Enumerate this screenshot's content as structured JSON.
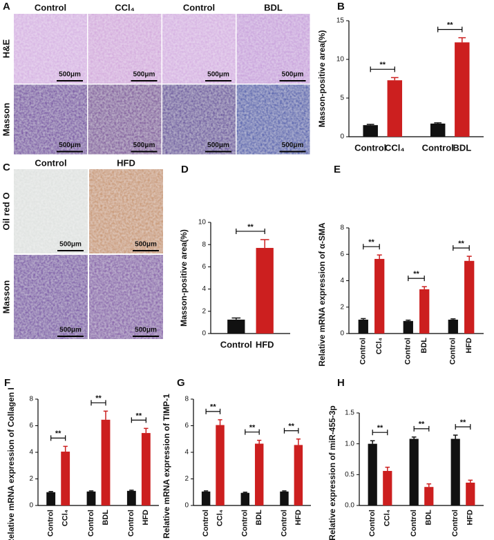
{
  "micrographs": [
    {
      "label": "A",
      "columns": [
        "Control",
        "CCl₄",
        "Control",
        "BDL"
      ],
      "rows": [
        "H&E",
        "Masson"
      ],
      "scale": "500μm"
    },
    {
      "label": "C",
      "columns": [
        "Control",
        "HFD"
      ],
      "rows": [
        "Oil red O",
        "Masson"
      ],
      "scale": "500μm"
    }
  ],
  "chart_data": [
    {
      "type": "bar",
      "label": "B",
      "ylabel": "Masson-positive area(%)",
      "categories": [
        "Control",
        "CCl₄",
        "Control",
        "BDL"
      ],
      "values": [
        1.5,
        7.3,
        1.7,
        12.2
      ],
      "errors": [
        0.1,
        0.35,
        0.1,
        0.6
      ],
      "colors": [
        "#111111",
        "#cc1f1f",
        "#111111",
        "#cc1f1f"
      ],
      "ylim": [
        0,
        15
      ],
      "yticks": [
        0,
        5,
        10,
        15
      ],
      "significance": [
        "**",
        "**"
      ]
    },
    {
      "type": "bar",
      "label": "D",
      "ylabel": "Masson-positive area(%)",
      "categories": [
        "Control",
        "HFD"
      ],
      "values": [
        1.25,
        7.7
      ],
      "errors": [
        0.15,
        0.75
      ],
      "colors": [
        "#111111",
        "#cc1f1f"
      ],
      "ylim": [
        0,
        10
      ],
      "yticks": [
        0,
        2,
        4,
        6,
        8,
        10
      ],
      "significance": [
        "**"
      ]
    },
    {
      "type": "bar",
      "label": "E",
      "ylabel": "Relative mRNA expression of α-SMA",
      "categories": [
        "Control",
        "CCl₄",
        "Control",
        "BDL",
        "Control",
        "HFD"
      ],
      "values": [
        1.05,
        5.65,
        0.95,
        3.35,
        1.05,
        5.5
      ],
      "errors": [
        0.08,
        0.3,
        0.06,
        0.2,
        0.06,
        0.35
      ],
      "colors": [
        "#111111",
        "#cc1f1f",
        "#111111",
        "#cc1f1f",
        "#111111",
        "#cc1f1f"
      ],
      "ylim": [
        0,
        8
      ],
      "yticks": [
        0,
        2,
        4,
        6,
        8
      ],
      "significance": [
        "**",
        "**",
        "**"
      ]
    },
    {
      "type": "bar",
      "label": "F",
      "ylabel": "Relative mRNA expression of Collagen I",
      "categories": [
        "Control",
        "CCl₄",
        "Control",
        "BDL",
        "Control",
        "HFD"
      ],
      "values": [
        1.0,
        4.05,
        1.05,
        6.45,
        1.1,
        5.45
      ],
      "errors": [
        0.05,
        0.4,
        0.05,
        0.65,
        0.05,
        0.35
      ],
      "colors": [
        "#111111",
        "#cc1f1f",
        "#111111",
        "#cc1f1f",
        "#111111",
        "#cc1f1f"
      ],
      "ylim": [
        0,
        8
      ],
      "yticks": [
        0,
        2,
        4,
        6,
        8
      ],
      "significance": [
        "**",
        "**",
        "**"
      ]
    },
    {
      "type": "bar",
      "label": "G",
      "ylabel": "Relative mRNA expression of TIMP-1",
      "categories": [
        "Control",
        "CCl₄",
        "Control",
        "BDL",
        "Control",
        "HFD"
      ],
      "values": [
        1.05,
        6.05,
        0.95,
        4.65,
        1.05,
        4.55
      ],
      "errors": [
        0.05,
        0.4,
        0.05,
        0.25,
        0.05,
        0.45
      ],
      "colors": [
        "#111111",
        "#cc1f1f",
        "#111111",
        "#cc1f1f",
        "#111111",
        "#cc1f1f"
      ],
      "ylim": [
        0,
        8
      ],
      "yticks": [
        0,
        2,
        4,
        6,
        8
      ],
      "significance": [
        "**",
        "**",
        "**"
      ]
    },
    {
      "type": "bar",
      "label": "H",
      "ylabel": "Relative expression of miR-455-3p",
      "categories": [
        "Control",
        "CCl₄",
        "Control",
        "BDL",
        "Control",
        "HFD"
      ],
      "values": [
        1.0,
        0.56,
        1.08,
        0.3,
        1.08,
        0.37
      ],
      "errors": [
        0.05,
        0.06,
        0.03,
        0.05,
        0.06,
        0.04
      ],
      "colors": [
        "#111111",
        "#cc1f1f",
        "#111111",
        "#cc1f1f",
        "#111111",
        "#cc1f1f"
      ],
      "ylim": [
        0,
        1.5
      ],
      "yticks": [
        {
          "value": 0,
          "label": "0.0"
        },
        {
          "value": 0.5,
          "label": "0.5"
        },
        {
          "value": 1,
          "label": "1.0"
        },
        {
          "value": 1.5,
          "label": "1.5"
        }
      ],
      "significance": [
        "**",
        "**",
        "**"
      ]
    }
  ]
}
